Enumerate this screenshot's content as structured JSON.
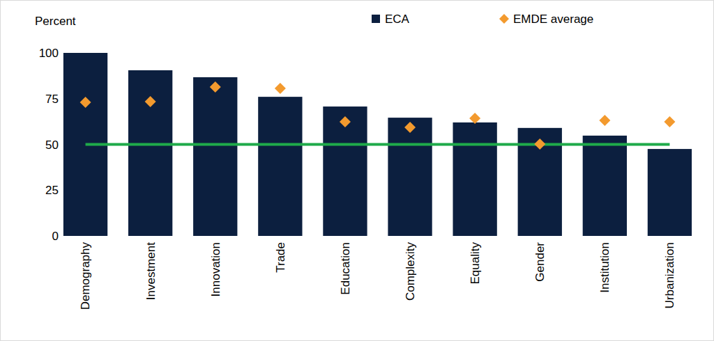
{
  "chart_data": {
    "type": "bar",
    "ylabel": "Percent",
    "categories": [
      "Demography",
      "Investment",
      "Innovation",
      "Trade",
      "Education",
      "Complexity",
      "Equality",
      "Gender",
      "Institution",
      "Urbanization"
    ],
    "series": [
      {
        "name": "ECA",
        "type": "bar",
        "color": "#0c1f3f",
        "values": [
          100,
          90.5,
          86.7,
          76,
          70.7,
          64.6,
          62,
          59,
          54.8,
          47.5
        ]
      },
      {
        "name": "EMDE average",
        "type": "scatter",
        "marker": "diamond",
        "color": "#f39a2e",
        "values": [
          73,
          73.4,
          81.4,
          80.6,
          62.4,
          59.3,
          64.3,
          50.2,
          63.1,
          62.4
        ]
      },
      {
        "type": "line",
        "line_style": "solid",
        "color": "#1faa4a",
        "values": [
          50,
          50,
          50,
          50,
          50,
          50,
          50,
          50,
          50,
          50
        ]
      }
    ],
    "ylim": [
      0,
      100
    ],
    "yticks": [
      0,
      25,
      50,
      75,
      100
    ],
    "grid": false,
    "legend": "top"
  }
}
